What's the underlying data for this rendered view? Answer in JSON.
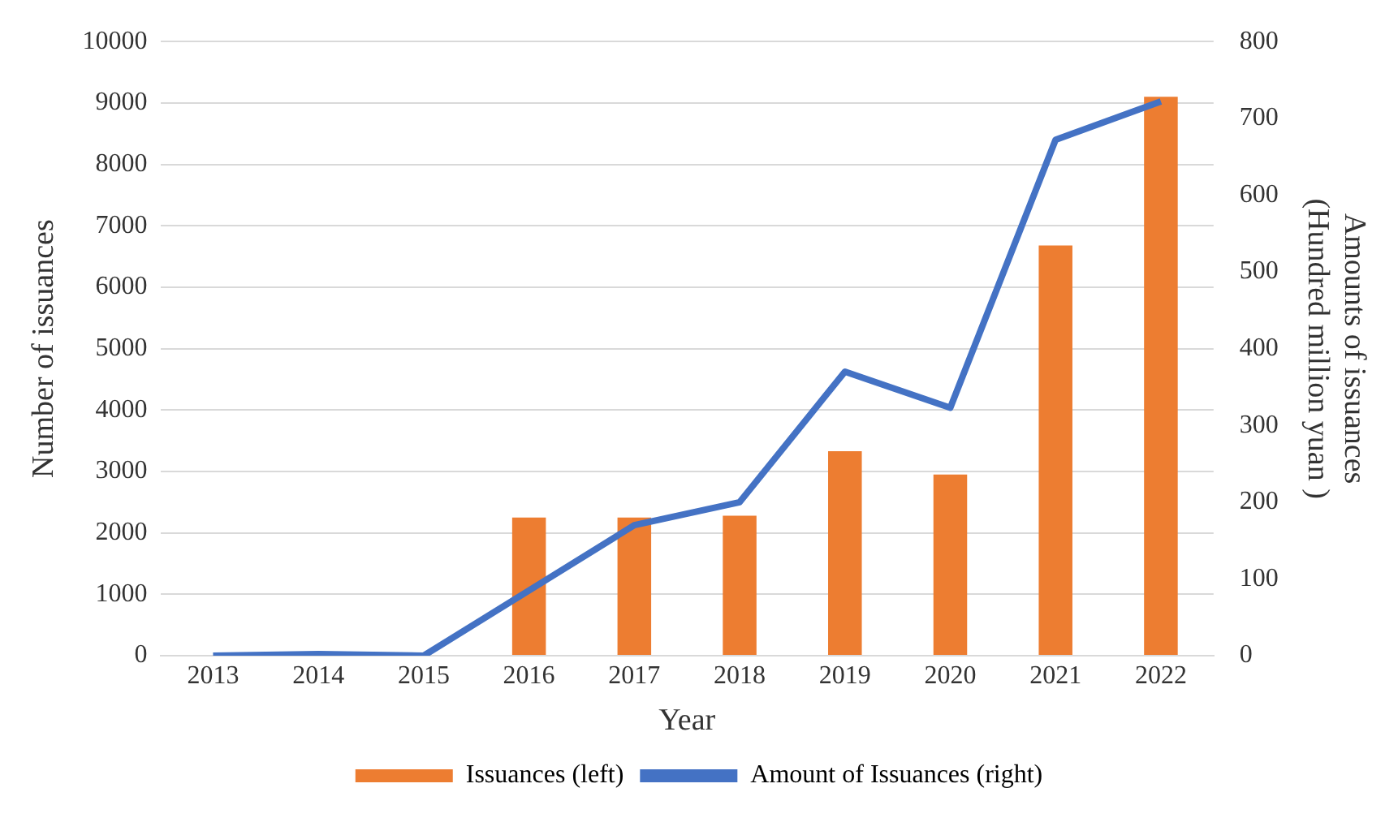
{
  "chart_data": {
    "type": "bar",
    "xlabel": "Year",
    "ylabel": "Number of issuances",
    "y2label": [
      "Amounts of issuances",
      "(Hundred million yuan )"
    ],
    "categories": [
      "2013",
      "2014",
      "2015",
      "2016",
      "2017",
      "2018",
      "2019",
      "2020",
      "2021",
      "2022"
    ],
    "series": [
      {
        "name": "Issuances (left)",
        "color": "#ed7d31",
        "values": [
          0,
          0,
          0,
          2250,
          2250,
          2280,
          3330,
          2950,
          6680,
          9100
        ]
      },
      {
        "name": "Amount of Issuances (right)",
        "type": "line",
        "axis": "y2",
        "color": "#4472c4",
        "values": [
          0,
          2,
          0,
          85,
          170,
          200,
          370,
          323,
          672,
          722
        ]
      }
    ],
    "ylim": [
      0,
      10000
    ],
    "yticks": [
      0,
      1000,
      2000,
      3000,
      4000,
      5000,
      6000,
      7000,
      8000,
      9000,
      10000
    ],
    "y2lim": [
      0,
      800
    ],
    "y2ticks": [
      0,
      100,
      200,
      300,
      400,
      500,
      600,
      700,
      800
    ],
    "grid": "y",
    "legend": "bottom",
    "marker": "none"
  }
}
